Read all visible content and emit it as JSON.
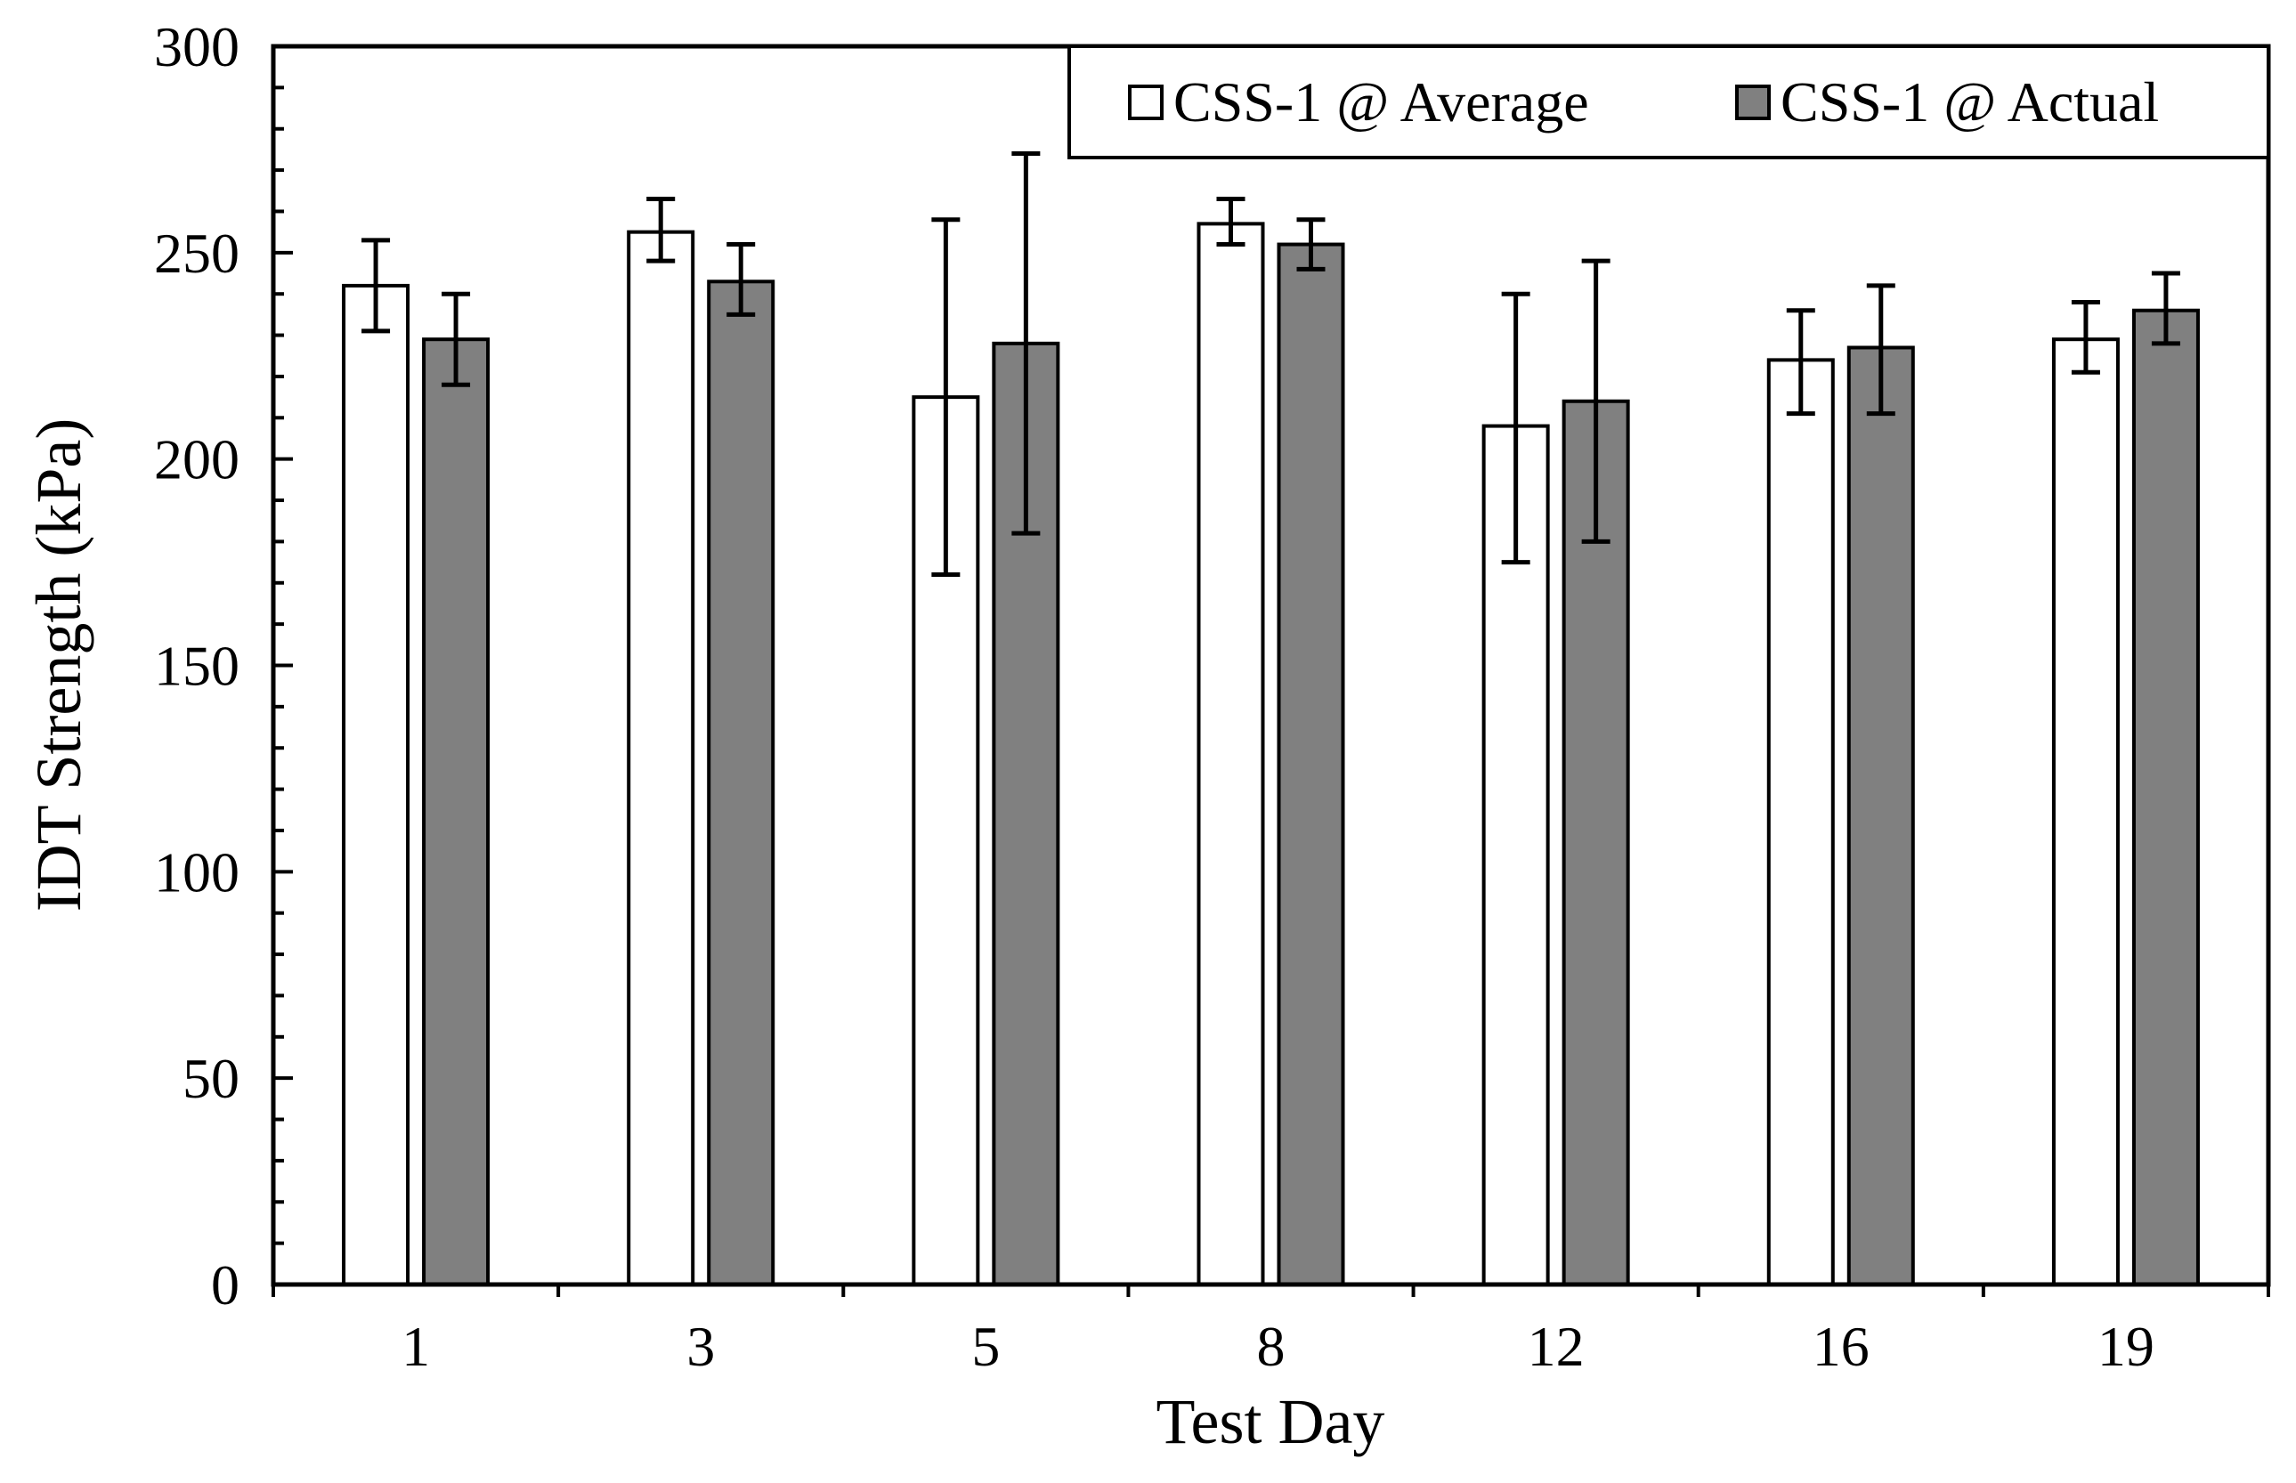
{
  "chart_data": {
    "type": "bar",
    "title": "",
    "xlabel": "Test Day",
    "ylabel": "IDT Strength (kPa)",
    "ylim": [
      0,
      300
    ],
    "yticks": [
      0,
      50,
      100,
      150,
      200,
      250,
      300
    ],
    "categories": [
      "1",
      "3",
      "5",
      "8",
      "12",
      "16",
      "19"
    ],
    "series": [
      {
        "name": "CSS-1 @ Average",
        "color": "#ffffff",
        "values": [
          242,
          255,
          215,
          257,
          208,
          224,
          229
        ],
        "err_low": [
          231,
          248,
          172,
          252,
          175,
          211,
          221
        ],
        "err_high": [
          253,
          263,
          258,
          263,
          240,
          236,
          238
        ]
      },
      {
        "name": "CSS-1 @ Actual",
        "color": "#808080",
        "values": [
          229,
          243,
          228,
          252,
          214,
          227,
          236
        ],
        "err_low": [
          218,
          235,
          182,
          246,
          180,
          211,
          228
        ],
        "err_high": [
          240,
          252,
          274,
          258,
          248,
          242,
          245
        ]
      }
    ],
    "legend_position": "top-right",
    "grid": false
  }
}
